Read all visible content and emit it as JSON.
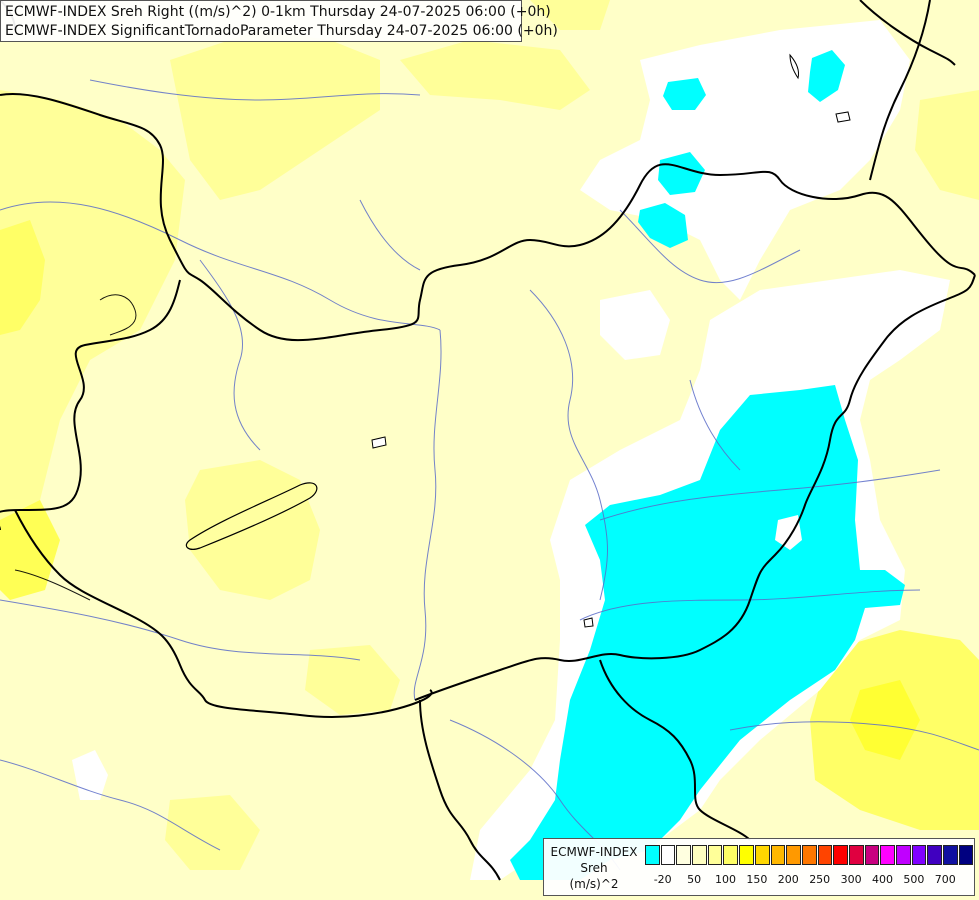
{
  "header": {
    "line1": "ECMWF-INDEX Sreh Right ((m/s)^2) 0-1km Thursday 24-07-2025 06:00 (+0h)",
    "line2": "ECMWF-INDEX SignificantTornadoParameter Thursday 24-07-2025 06:00 (+0h)"
  },
  "legend": {
    "title": "ECMWF-INDEX",
    "subtitle": "Sreh",
    "unit": "(m/s)^2",
    "swatch_colors": [
      "#00ffff",
      "#ffffff",
      "#ffffe0",
      "#ffffc0",
      "#ffff99",
      "#ffff66",
      "#ffff00",
      "#ffd700",
      "#ffb800",
      "#ff9900",
      "#ff7700",
      "#ff4400",
      "#ff0000",
      "#e00040",
      "#c80080",
      "#ff00ff",
      "#c000ff",
      "#8000ff",
      "#4000c0",
      "#1010a0",
      "#000080"
    ],
    "tick_labels": [
      "-20",
      "50",
      "100",
      "150",
      "200",
      "250",
      "300",
      "400",
      "500",
      "700"
    ]
  },
  "map_colors": {
    "background": "#ffffc8",
    "light_yellow": "#ffffa0",
    "yellow": "#ffff66",
    "strong_yellow": "#ffff00",
    "white": "#ffffff",
    "cyan": "#00ffff",
    "border": "#000000",
    "river": "#5a6cc8"
  }
}
